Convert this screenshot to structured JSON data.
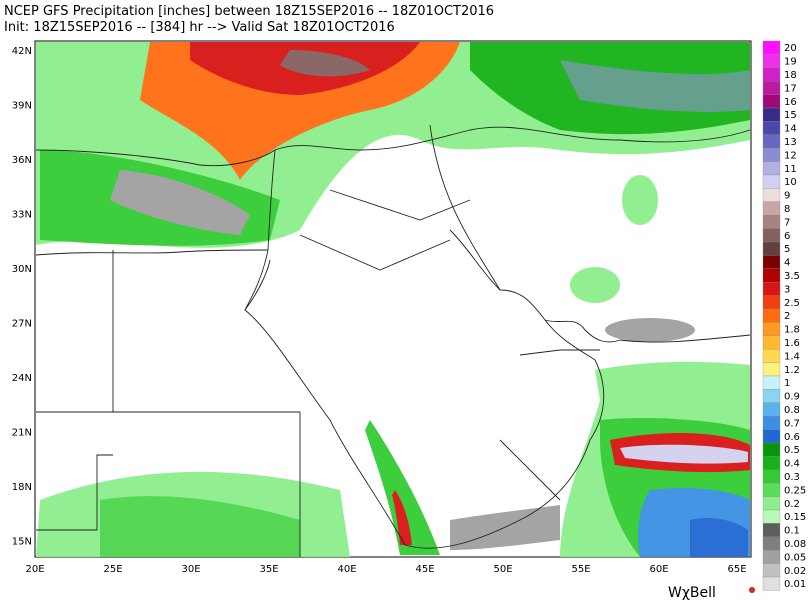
{
  "header": {
    "line1": "NCEP GFS Precipitation [inches] between 18Z15SEP2016 -- 18Z01OCT2016",
    "line2": "Init: 18Z15SEP2016 -- [384] hr --> Valid Sat 18Z01OCT2016"
  },
  "map": {
    "lat_labels": [
      "42N",
      "39N",
      "36N",
      "33N",
      "30N",
      "27N",
      "24N",
      "21N",
      "18N",
      "15N"
    ],
    "lon_labels": [
      "20E",
      "25E",
      "30E",
      "35E",
      "40E",
      "45E",
      "50E",
      "55E",
      "60E",
      "65E"
    ]
  },
  "colorbar": {
    "labels": [
      "20",
      "19",
      "18",
      "17",
      "16",
      "15",
      "14",
      "13",
      "12",
      "11",
      "10",
      "9",
      "8",
      "7",
      "6",
      "5",
      "4",
      "3.5",
      "3",
      "2.5",
      "2",
      "1.8",
      "1.6",
      "1.4",
      "1.2",
      "1",
      "0.9",
      "0.8",
      "0.7",
      "0.6",
      "0.5",
      "0.4",
      "0.3",
      "0.25",
      "0.2",
      "0.15",
      "0.1",
      "0.08",
      "0.05",
      "0.02",
      "0.01"
    ],
    "colors": [
      "#ff10ff",
      "#f030e8",
      "#d020c8",
      "#b81aa0",
      "#a00878",
      "#3a2a88",
      "#4a48a8",
      "#6868c0",
      "#8c8cd2",
      "#b0b0e2",
      "#d2d0ee",
      "#ecdede",
      "#c8a6a6",
      "#a88282",
      "#846060",
      "#624040",
      "#7a0000",
      "#b00000",
      "#d81414",
      "#f04012",
      "#ff6c10",
      "#ff9a20",
      "#ffb830",
      "#ffd850",
      "#fff07c",
      "#c6f2ff",
      "#8ad4f2",
      "#5ab2ea",
      "#3a90e2",
      "#2068d2",
      "#0a960a",
      "#16b216",
      "#32cc32",
      "#5cdc5c",
      "#8cee8c",
      "#baf8ba",
      "#5e5e5e",
      "#7e7e7e",
      "#a0a0a0",
      "#c0c0c0",
      "#e0e0e0"
    ]
  },
  "logo": "WχBell"
}
